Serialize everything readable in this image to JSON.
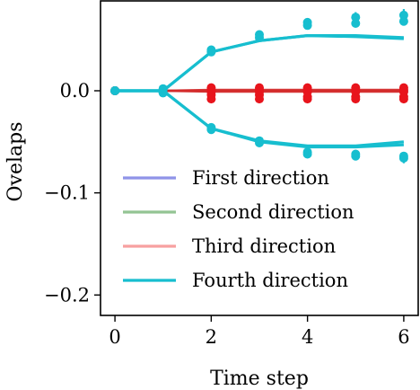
{
  "chart_data": {
    "type": "line",
    "xlabel": "Time step",
    "ylabel": "Ovelaps",
    "xlim": [
      -0.3,
      6.3
    ],
    "ylim": [
      -0.22,
      0.088
    ],
    "xticks": [
      0,
      2,
      4,
      6
    ],
    "yticks": [
      0.0,
      -0.1,
      -0.2
    ],
    "ytick_labels": [
      "0.0",
      "−0.1",
      "−0.2"
    ],
    "x": [
      0,
      1,
      2,
      3,
      4,
      5,
      6
    ],
    "legend_position": "lower-center",
    "series": [
      {
        "name": "First direction",
        "color": "#8f93e8",
        "lines": [
          [
            0,
            0,
            0,
            0,
            0,
            0,
            0
          ]
        ],
        "points": [
          [
            0,
            0,
            0,
            0,
            0,
            0,
            0
          ]
        ]
      },
      {
        "name": "Second direction",
        "color": "#93c493",
        "lines": [
          [
            0,
            0,
            0,
            0,
            0,
            0,
            0
          ]
        ],
        "points": [
          [
            0,
            0,
            0,
            0,
            0,
            0,
            0
          ]
        ]
      },
      {
        "name": "Third direction",
        "color": "#f7a0a0",
        "lines": [
          [
            0,
            0,
            0.001,
            0.001,
            0.001,
            0.001,
            0.001
          ],
          [
            0,
            0,
            -0.001,
            -0.001,
            -0.001,
            -0.001,
            -0.001
          ],
          [
            0,
            0,
            0,
            0,
            0,
            0,
            0
          ]
        ],
        "marker_color": "#e8141c",
        "line_color": "#d42a2a",
        "points": [
          [
            0,
            0,
            0.003,
            0.003,
            0.003,
            0.003,
            0.003
          ],
          [
            0,
            0,
            0.001,
            0.001,
            0.001,
            0.001,
            0.001
          ],
          [
            0,
            0,
            -0.001,
            -0.001,
            -0.001,
            -0.001,
            -0.001
          ],
          [
            0,
            0,
            -0.004,
            -0.004,
            -0.006,
            -0.006,
            -0.006
          ],
          [
            0,
            0,
            -0.008,
            -0.008,
            -0.008,
            -0.008,
            -0.008
          ]
        ]
      },
      {
        "name": "Fourth direction",
        "color": "#17becf",
        "lines": [
          [
            0,
            0,
            0.038,
            0.049,
            0.054,
            0.053,
            0.051
          ],
          [
            0,
            0,
            0.038,
            0.049,
            0.054,
            0.054,
            0.052
          ],
          [
            0,
            0,
            -0.037,
            -0.049,
            -0.054,
            -0.054,
            -0.05
          ],
          [
            0,
            0,
            -0.037,
            -0.05,
            -0.055,
            -0.055,
            -0.053
          ]
        ],
        "points": [
          [
            0,
            0.002,
            0.04,
            0.055,
            0.067,
            0.072,
            0.074
          ],
          [
            0,
            -0.002,
            0.038,
            0.052,
            0.064,
            0.066,
            0.068
          ],
          [
            0,
            0.001,
            -0.036,
            -0.049,
            -0.06,
            -0.062,
            -0.064
          ],
          [
            0,
            -0.002,
            -0.038,
            -0.051,
            -0.062,
            -0.064,
            -0.066
          ]
        ],
        "error_bars": [
          {
            "x": 4,
            "y": 0.067,
            "err": 0.004
          },
          {
            "x": 5,
            "y": 0.072,
            "err": 0.005
          },
          {
            "x": 6,
            "y": 0.074,
            "err": 0.006
          },
          {
            "x": 4,
            "y": -0.062,
            "err": 0.004
          },
          {
            "x": 5,
            "y": -0.064,
            "err": 0.004
          },
          {
            "x": 6,
            "y": -0.066,
            "err": 0.005
          }
        ]
      }
    ]
  }
}
